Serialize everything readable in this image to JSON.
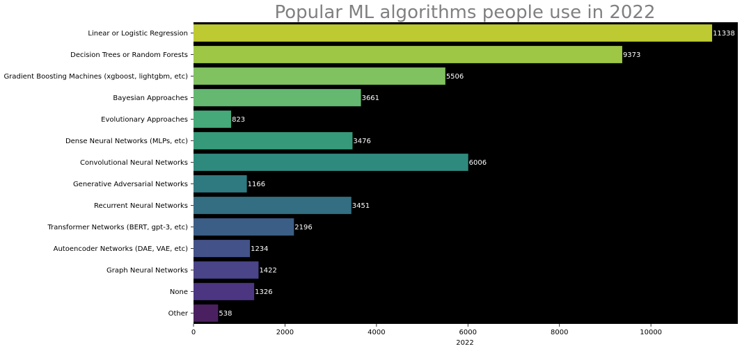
{
  "chart_data": {
    "type": "bar",
    "orientation": "horizontal",
    "title": "Popular ML algorithms people use in 2022",
    "xlabel": "2022",
    "ylabel": "",
    "xlim": [
      0,
      11900
    ],
    "xticks": [
      0,
      2000,
      4000,
      6000,
      8000,
      10000
    ],
    "grid": false,
    "plot_background": "#000000",
    "title_color": "#808080",
    "label_color": "#ffffff",
    "palette": "viridis",
    "categories": [
      "Linear or Logistic Regression",
      "Decision Trees or Random Forests",
      "Gradient Boosting Machines (xgboost, lightgbm, etc)",
      "Bayesian Approaches",
      "Evolutionary Approaches",
      "Dense Neural Networks (MLPs, etc)",
      "Convolutional Neural Networks",
      "Generative Adversarial Networks",
      "Recurrent Neural Networks",
      "Transformer Networks (BERT, gpt-3, etc)",
      "Autoencoder Networks (DAE, VAE, etc)",
      "Graph Neural Networks",
      "None",
      "Other"
    ],
    "values": [
      11338,
      9373,
      5506,
      3661,
      823,
      3476,
      6006,
      1166,
      3451,
      2196,
      1234,
      1422,
      1326,
      538
    ],
    "colors": [
      "#bdca31",
      "#9fc746",
      "#80c160",
      "#64b870",
      "#45a979",
      "#369a7a",
      "#2e8a7d",
      "#2f7a80",
      "#336e82",
      "#3b5e87",
      "#44528a",
      "#4a4489",
      "#4c3581",
      "#4b2060"
    ]
  }
}
